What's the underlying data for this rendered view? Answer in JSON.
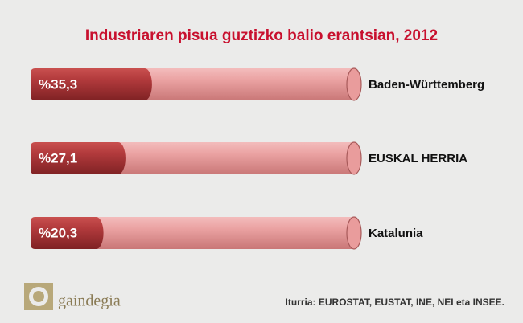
{
  "chart_data": {
    "type": "bar",
    "orientation": "horizontal",
    "title": "Industriaren pisua guztizko balio erantsian, 2012",
    "categories": [
      "Baden-Württemberg",
      "EUSKAL HERRIA",
      "Katalunia"
    ],
    "values": [
      35.3,
      27.1,
      20.3
    ],
    "value_labels": [
      "%35,3",
      "%27,1",
      "%20,3"
    ],
    "color": "#b23a3c",
    "track_color": "#e99c9c",
    "xlim": [
      0,
      100
    ],
    "source": "Iturria: EUROSTAT, EUSTAT, INE, NEI eta INSEE."
  },
  "logo": "gaindegia"
}
